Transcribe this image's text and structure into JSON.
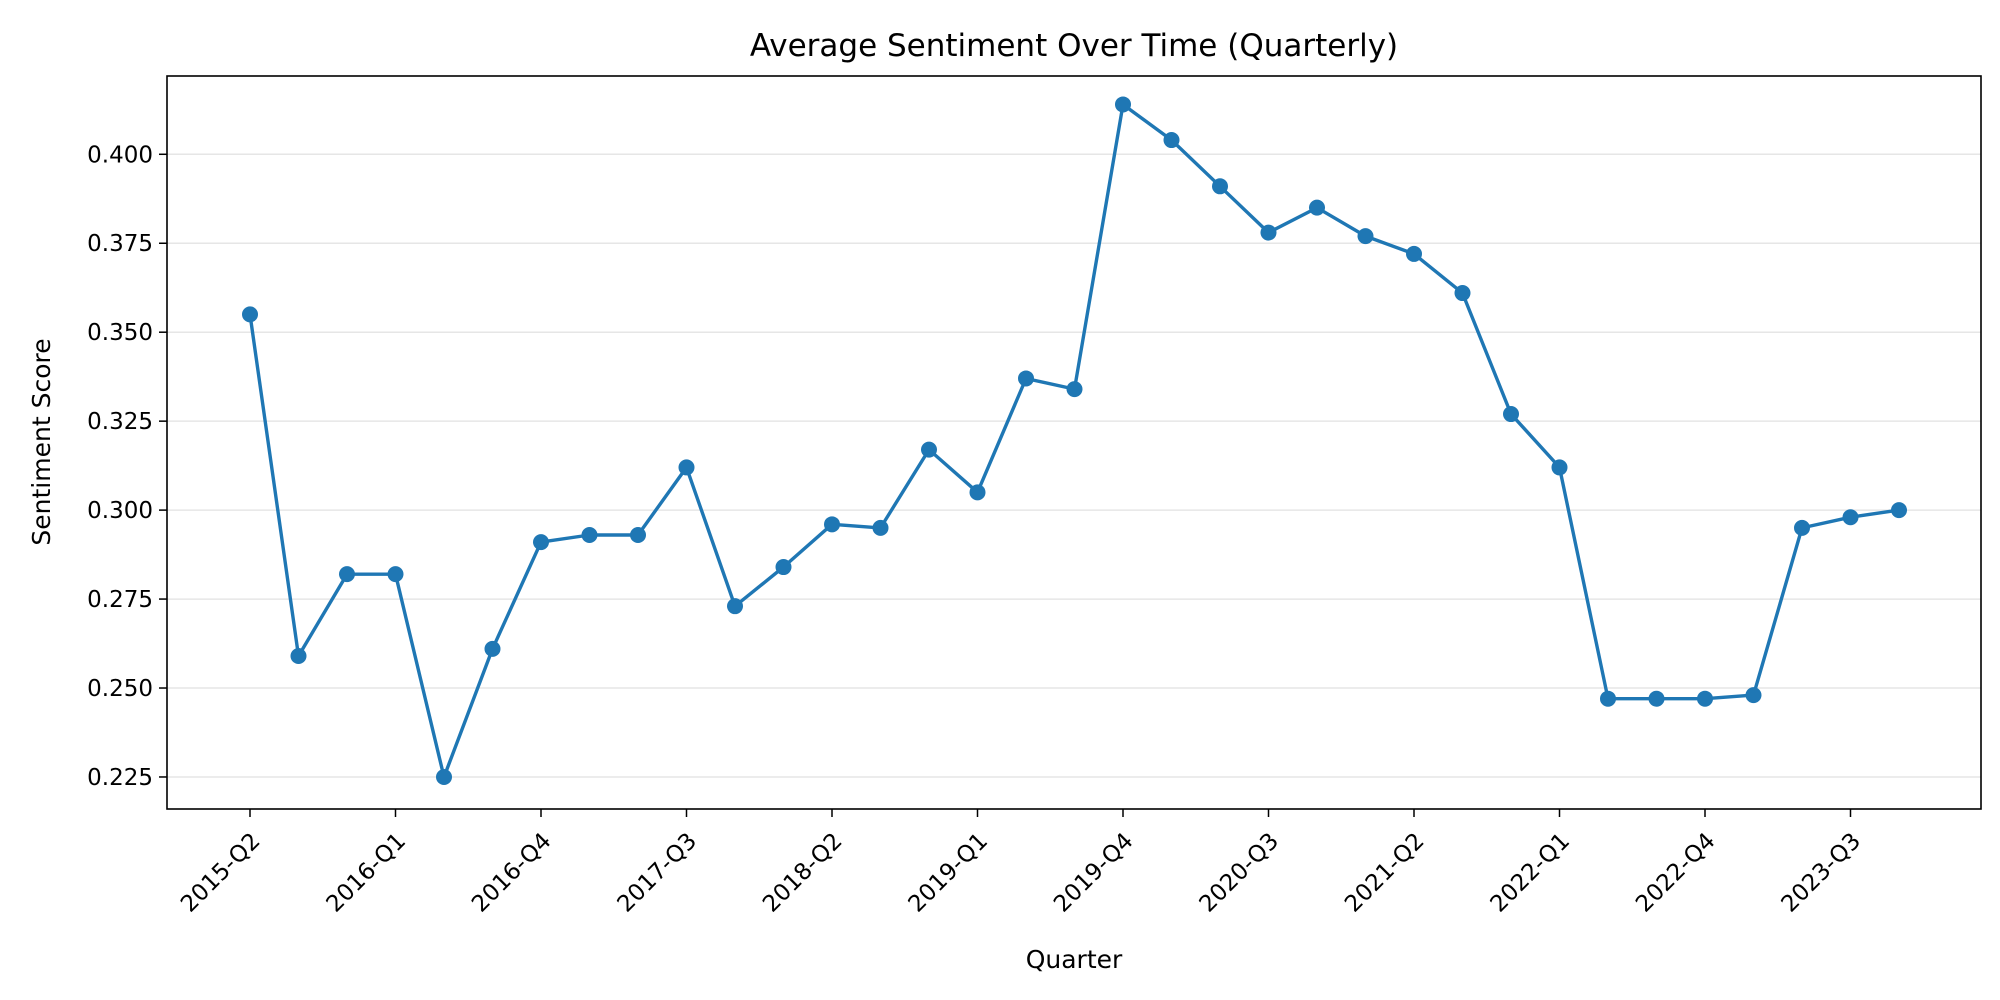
{
  "chart_data": {
    "type": "line",
    "title": "Average Sentiment Over Time (Quarterly)",
    "xlabel": "Quarter",
    "ylabel": "Sentiment Score",
    "ylim": [
      0.216,
      0.422
    ],
    "yticks": [
      0.225,
      0.25,
      0.275,
      0.3,
      0.325,
      0.35,
      0.375,
      0.4
    ],
    "ytick_labels": [
      "0.225",
      "0.250",
      "0.275",
      "0.300",
      "0.325",
      "0.350",
      "0.375",
      "0.400"
    ],
    "categories": [
      "2015-Q2",
      "2015-Q3",
      "2015-Q4",
      "2016-Q1",
      "2016-Q2",
      "2016-Q3",
      "2016-Q4",
      "2017-Q1",
      "2017-Q2",
      "2017-Q3",
      "2017-Q4",
      "2018-Q1",
      "2018-Q2",
      "2018-Q3",
      "2018-Q4",
      "2019-Q1",
      "2019-Q2",
      "2019-Q3",
      "2019-Q4",
      "2020-Q1",
      "2020-Q2",
      "2020-Q3",
      "2020-Q4",
      "2021-Q1",
      "2021-Q2",
      "2021-Q3",
      "2021-Q4",
      "2022-Q1",
      "2022-Q2",
      "2022-Q3",
      "2022-Q4",
      "2023-Q1",
      "2023-Q2",
      "2023-Q3",
      "2023-Q4"
    ],
    "xtick_labels": [
      "2015-Q2",
      "2016-Q1",
      "2016-Q4",
      "2017-Q3",
      "2018-Q2",
      "2019-Q1",
      "2019-Q4",
      "2020-Q3",
      "2021-Q2",
      "2022-Q1",
      "2022-Q4",
      "2023-Q3"
    ],
    "grid": "y-only",
    "color": "#1f77b4",
    "values": [
      0.355,
      0.259,
      0.282,
      0.282,
      0.225,
      0.261,
      0.291,
      0.293,
      0.293,
      0.312,
      0.273,
      0.284,
      0.296,
      0.295,
      0.317,
      0.305,
      0.337,
      0.334,
      0.414,
      0.404,
      0.391,
      0.378,
      0.385,
      0.377,
      0.372,
      0.361,
      0.327,
      0.312,
      0.247,
      0.247,
      0.247,
      0.248,
      0.295,
      0.298,
      0.3
    ]
  }
}
